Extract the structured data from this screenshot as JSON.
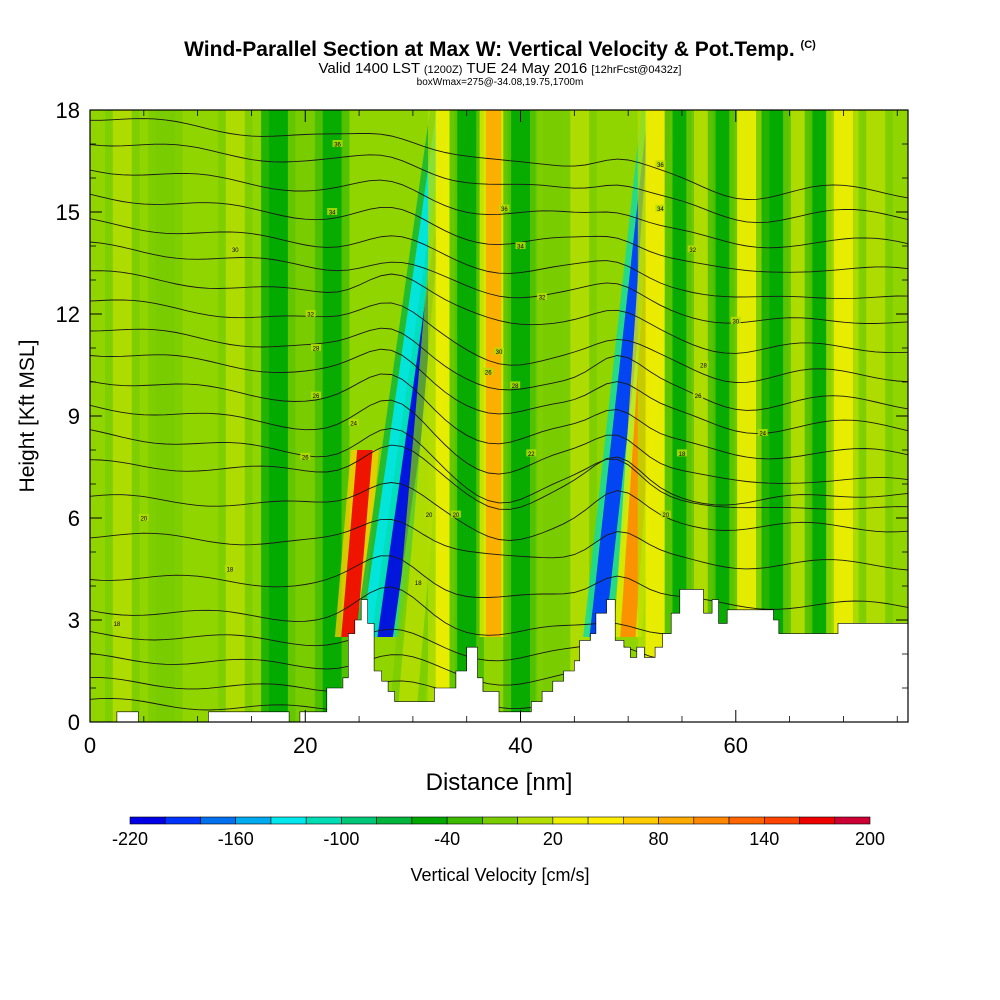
{
  "chart_data": {
    "type": "heatmap",
    "title": "Wind-Parallel Section at Max W: Vertical Velocity & Pot.Temp.",
    "title_mark": "(C)",
    "subtitle_parts": [
      "Valid 1400 LST",
      "(1200Z)",
      "TUE 24 May 2016",
      "[12hrFcst@0432z]"
    ],
    "subtitle2": "boxWmax=275@-34.08,19.75,1700m",
    "xlabel": "Distance [nm]",
    "ylabel": "Height [Kft MSL]",
    "xlim": [
      0,
      76
    ],
    "ylim": [
      0,
      18
    ],
    "xticks": [
      "0",
      "20",
      "40",
      "60"
    ],
    "xtick_values": [
      0,
      20,
      40,
      60
    ],
    "yticks": [
      "0",
      "3",
      "6",
      "9",
      "12",
      "15",
      "18"
    ],
    "ytick_values": [
      0,
      3,
      6,
      9,
      12,
      15,
      18
    ],
    "colorbar": {
      "label": "Vertical Velocity [cm/s]",
      "tick_labels": [
        "-220",
        "-160",
        "-100",
        "-40",
        "20",
        "80",
        "140",
        "200"
      ],
      "colors": [
        "#0000e6",
        "#0033ff",
        "#0070ee",
        "#00aaee",
        "#00e8ee",
        "#00dcb4",
        "#00c878",
        "#00b43c",
        "#00a800",
        "#3cbb00",
        "#78cc00",
        "#b4dd00",
        "#eeee00",
        "#ffee00",
        "#ffcc00",
        "#ffaa00",
        "#ff8800",
        "#ff6600",
        "#ff4400",
        "#ee0000",
        "#cc0033"
      ]
    },
    "vertical_velocity_bands_cm_s": [
      {
        "x": 3,
        "peak": 30
      },
      {
        "x": 7,
        "peak": 20
      },
      {
        "x": 13.5,
        "peak": 40
      },
      {
        "x": 17.5,
        "peak": -40
      },
      {
        "x": 20,
        "peak": 20
      },
      {
        "x": 22.5,
        "peak": -20
      },
      {
        "x": 25,
        "peak": 220
      },
      {
        "x": 27.5,
        "peak": -120
      },
      {
        "x": 29,
        "peak": -200
      },
      {
        "x": 31,
        "peak": 40
      },
      {
        "x": 33,
        "peak": 70
      },
      {
        "x": 35,
        "peak": -20
      },
      {
        "x": 37.5,
        "peak": 120
      },
      {
        "x": 40,
        "peak": -20
      },
      {
        "x": 43,
        "peak": 20
      },
      {
        "x": 45.5,
        "peak": 40
      },
      {
        "x": 48,
        "peak": -180
      },
      {
        "x": 50.5,
        "peak": 140
      },
      {
        "x": 52.5,
        "peak": 60
      },
      {
        "x": 55,
        "peak": -20
      },
      {
        "x": 57,
        "peak": 30
      },
      {
        "x": 59,
        "peak": -20
      },
      {
        "x": 61,
        "peak": 50
      },
      {
        "x": 64,
        "peak": -40
      },
      {
        "x": 66,
        "peak": 40
      },
      {
        "x": 68,
        "peak": -20
      },
      {
        "x": 70,
        "peak": 60
      },
      {
        "x": 73,
        "peak": 30
      }
    ],
    "theta_contours_kft_at_x0": [
      0.6,
      1.2,
      1.9,
      2.6,
      3.3,
      4.3,
      5.5,
      6.6,
      7.6,
      8.5,
      9.3,
      10.1,
      10.9,
      11.6,
      12.4,
      13.2,
      14.0,
      14.7,
      15.5,
      16.3,
      17.1,
      17.8
    ],
    "contour_labels": [
      {
        "text": "18",
        "x": 2.5,
        "y": 2.9
      },
      {
        "text": "18",
        "x": 13,
        "y": 4.5
      },
      {
        "text": "20",
        "x": 5,
        "y": 6.0
      },
      {
        "text": "26",
        "x": 20,
        "y": 7.8
      },
      {
        "text": "24",
        "x": 24.5,
        "y": 8.8
      },
      {
        "text": "26",
        "x": 21,
        "y": 9.6
      },
      {
        "text": "28",
        "x": 21,
        "y": 11.0
      },
      {
        "text": "30",
        "x": 13.5,
        "y": 13.9
      },
      {
        "text": "32",
        "x": 20.5,
        "y": 12.0
      },
      {
        "text": "34",
        "x": 22.5,
        "y": 15.0
      },
      {
        "text": "36",
        "x": 23,
        "y": 17.0
      },
      {
        "text": "20",
        "x": 34,
        "y": 6.1
      },
      {
        "text": "18",
        "x": 30.5,
        "y": 4.1
      },
      {
        "text": "26",
        "x": 37,
        "y": 10.3
      },
      {
        "text": "28",
        "x": 39.5,
        "y": 9.9
      },
      {
        "text": "22",
        "x": 41,
        "y": 7.9
      },
      {
        "text": "30",
        "x": 38,
        "y": 10.9
      },
      {
        "text": "32",
        "x": 42,
        "y": 12.5
      },
      {
        "text": "34",
        "x": 40,
        "y": 14.0
      },
      {
        "text": "36",
        "x": 38.5,
        "y": 15.1
      },
      {
        "text": "36",
        "x": 53,
        "y": 16.4
      },
      {
        "text": "34",
        "x": 53,
        "y": 15.1
      },
      {
        "text": "32",
        "x": 56,
        "y": 13.9
      },
      {
        "text": "30",
        "x": 60,
        "y": 11.8
      },
      {
        "text": "28",
        "x": 57,
        "y": 10.5
      },
      {
        "text": "26",
        "x": 56.5,
        "y": 9.6
      },
      {
        "text": "24",
        "x": 62.5,
        "y": 8.5
      },
      {
        "text": "18",
        "x": 55,
        "y": 7.9
      },
      {
        "text": "20",
        "x": 53.5,
        "y": 6.1
      },
      {
        "text": "20",
        "x": 31.5,
        "y": 6.1
      }
    ],
    "terrain_kft": [
      [
        0,
        0
      ],
      [
        2.5,
        0
      ],
      [
        2.5,
        0.3
      ],
      [
        4.5,
        0.3
      ],
      [
        4.5,
        0
      ],
      [
        11,
        0
      ],
      [
        11,
        0.3
      ],
      [
        18.5,
        0.3
      ],
      [
        18.5,
        0
      ],
      [
        19.5,
        0
      ],
      [
        19.5,
        0.3
      ],
      [
        22,
        0.3
      ],
      [
        22,
        1.0
      ],
      [
        23.5,
        1.0
      ],
      [
        23.5,
        1.3
      ],
      [
        24,
        1.3
      ],
      [
        24,
        2.6
      ],
      [
        24.6,
        2.6
      ],
      [
        24.6,
        3.0
      ],
      [
        25.2,
        3.0
      ],
      [
        25.2,
        3.6
      ],
      [
        25.8,
        3.6
      ],
      [
        25.8,
        2.9
      ],
      [
        26.4,
        2.9
      ],
      [
        26.4,
        1.5
      ],
      [
        27.1,
        1.5
      ],
      [
        27.1,
        1.2
      ],
      [
        27.7,
        1.2
      ],
      [
        27.7,
        0.9
      ],
      [
        28.3,
        0.9
      ],
      [
        28.3,
        0.6
      ],
      [
        32,
        0.6
      ],
      [
        32,
        1.0
      ],
      [
        34,
        1.0
      ],
      [
        34,
        1.5
      ],
      [
        35,
        1.5
      ],
      [
        35,
        2.2
      ],
      [
        36,
        2.2
      ],
      [
        36,
        1.3
      ],
      [
        36.5,
        1.3
      ],
      [
        36.5,
        0.9
      ],
      [
        38,
        0.9
      ],
      [
        38,
        0.3
      ],
      [
        41,
        0.3
      ],
      [
        41,
        0.6
      ],
      [
        42,
        0.6
      ],
      [
        42,
        0.9
      ],
      [
        43,
        0.9
      ],
      [
        43,
        1.2
      ],
      [
        44,
        1.2
      ],
      [
        44,
        1.5
      ],
      [
        45,
        1.5
      ],
      [
        45,
        1.8
      ],
      [
        45.5,
        1.8
      ],
      [
        45.5,
        2.4
      ],
      [
        46.5,
        2.4
      ],
      [
        46.5,
        2.6
      ],
      [
        47,
        2.6
      ],
      [
        47,
        3.2
      ],
      [
        48,
        3.2
      ],
      [
        48,
        3.6
      ],
      [
        48.8,
        3.6
      ],
      [
        48.8,
        2.4
      ],
      [
        49.6,
        2.4
      ],
      [
        49.6,
        2.2
      ],
      [
        50.2,
        2.2
      ],
      [
        50.2,
        1.9
      ],
      [
        50.8,
        1.9
      ],
      [
        50.8,
        2.2
      ],
      [
        51.5,
        2.2
      ],
      [
        51.5,
        1.9
      ],
      [
        52.5,
        1.9
      ],
      [
        52.5,
        2.2
      ],
      [
        53.2,
        2.2
      ],
      [
        53.2,
        2.6
      ],
      [
        54,
        2.6
      ],
      [
        54,
        3.2
      ],
      [
        54.8,
        3.2
      ],
      [
        54.8,
        3.9
      ],
      [
        57,
        3.9
      ],
      [
        57,
        3.2
      ],
      [
        57.8,
        3.2
      ],
      [
        57.8,
        3.6
      ],
      [
        58.4,
        3.6
      ],
      [
        58.4,
        2.9
      ],
      [
        59.2,
        2.9
      ],
      [
        59.2,
        3.3
      ],
      [
        63.5,
        3.3
      ],
      [
        63.5,
        3.0
      ],
      [
        64,
        3.0
      ],
      [
        64,
        2.6
      ],
      [
        69.5,
        2.6
      ],
      [
        69.5,
        2.9
      ],
      [
        76,
        2.9
      ],
      [
        76,
        0
      ]
    ]
  }
}
